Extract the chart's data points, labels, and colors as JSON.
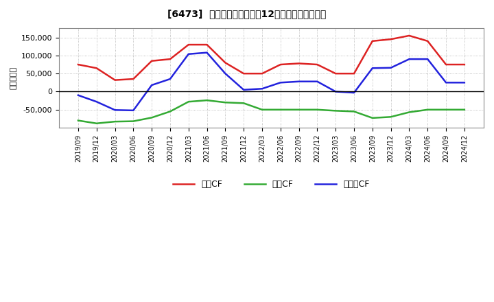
{
  "title": "[6473]  キャッシュフローの12か月移動合計の推移",
  "ylabel": "（百万円）",
  "background_color": "#ffffff",
  "plot_bg_color": "#ffffff",
  "grid_color": "#aaaaaa",
  "dates": [
    "2019/09",
    "2019/12",
    "2020/03",
    "2020/06",
    "2020/09",
    "2020/12",
    "2021/03",
    "2021/06",
    "2021/09",
    "2021/12",
    "2022/03",
    "2022/06",
    "2022/09",
    "2022/12",
    "2023/03",
    "2023/06",
    "2023/09",
    "2023/12",
    "2024/03",
    "2024/06",
    "2024/09",
    "2024/12"
  ],
  "operating_cf": [
    75000,
    65000,
    32000,
    35000,
    85000,
    90000,
    130000,
    130000,
    80000,
    50000,
    50000,
    75000,
    78000,
    75000,
    50000,
    50000,
    140000,
    145000,
    155000,
    140000,
    75000,
    75000
  ],
  "investing_cf": [
    -80000,
    -88000,
    -83000,
    -82000,
    -72000,
    -55000,
    -28000,
    -24000,
    -30000,
    -32000,
    -50000,
    -50000,
    -50000,
    -50000,
    -53000,
    -55000,
    -73000,
    -70000,
    -57000,
    -50000,
    -50000,
    -50000
  ],
  "free_cf": [
    -10000,
    -28000,
    -51000,
    -52000,
    18000,
    35000,
    104000,
    108000,
    50000,
    5000,
    8000,
    25000,
    28000,
    28000,
    0,
    -3000,
    65000,
    66000,
    90000,
    90000,
    25000,
    25000
  ],
  "operating_color": "#dd2222",
  "investing_color": "#33aa33",
  "free_color": "#2222dd",
  "line_width": 1.8,
  "ylim": [
    -100000,
    175000
  ],
  "yticks": [
    -50000,
    0,
    50000,
    100000,
    150000
  ]
}
